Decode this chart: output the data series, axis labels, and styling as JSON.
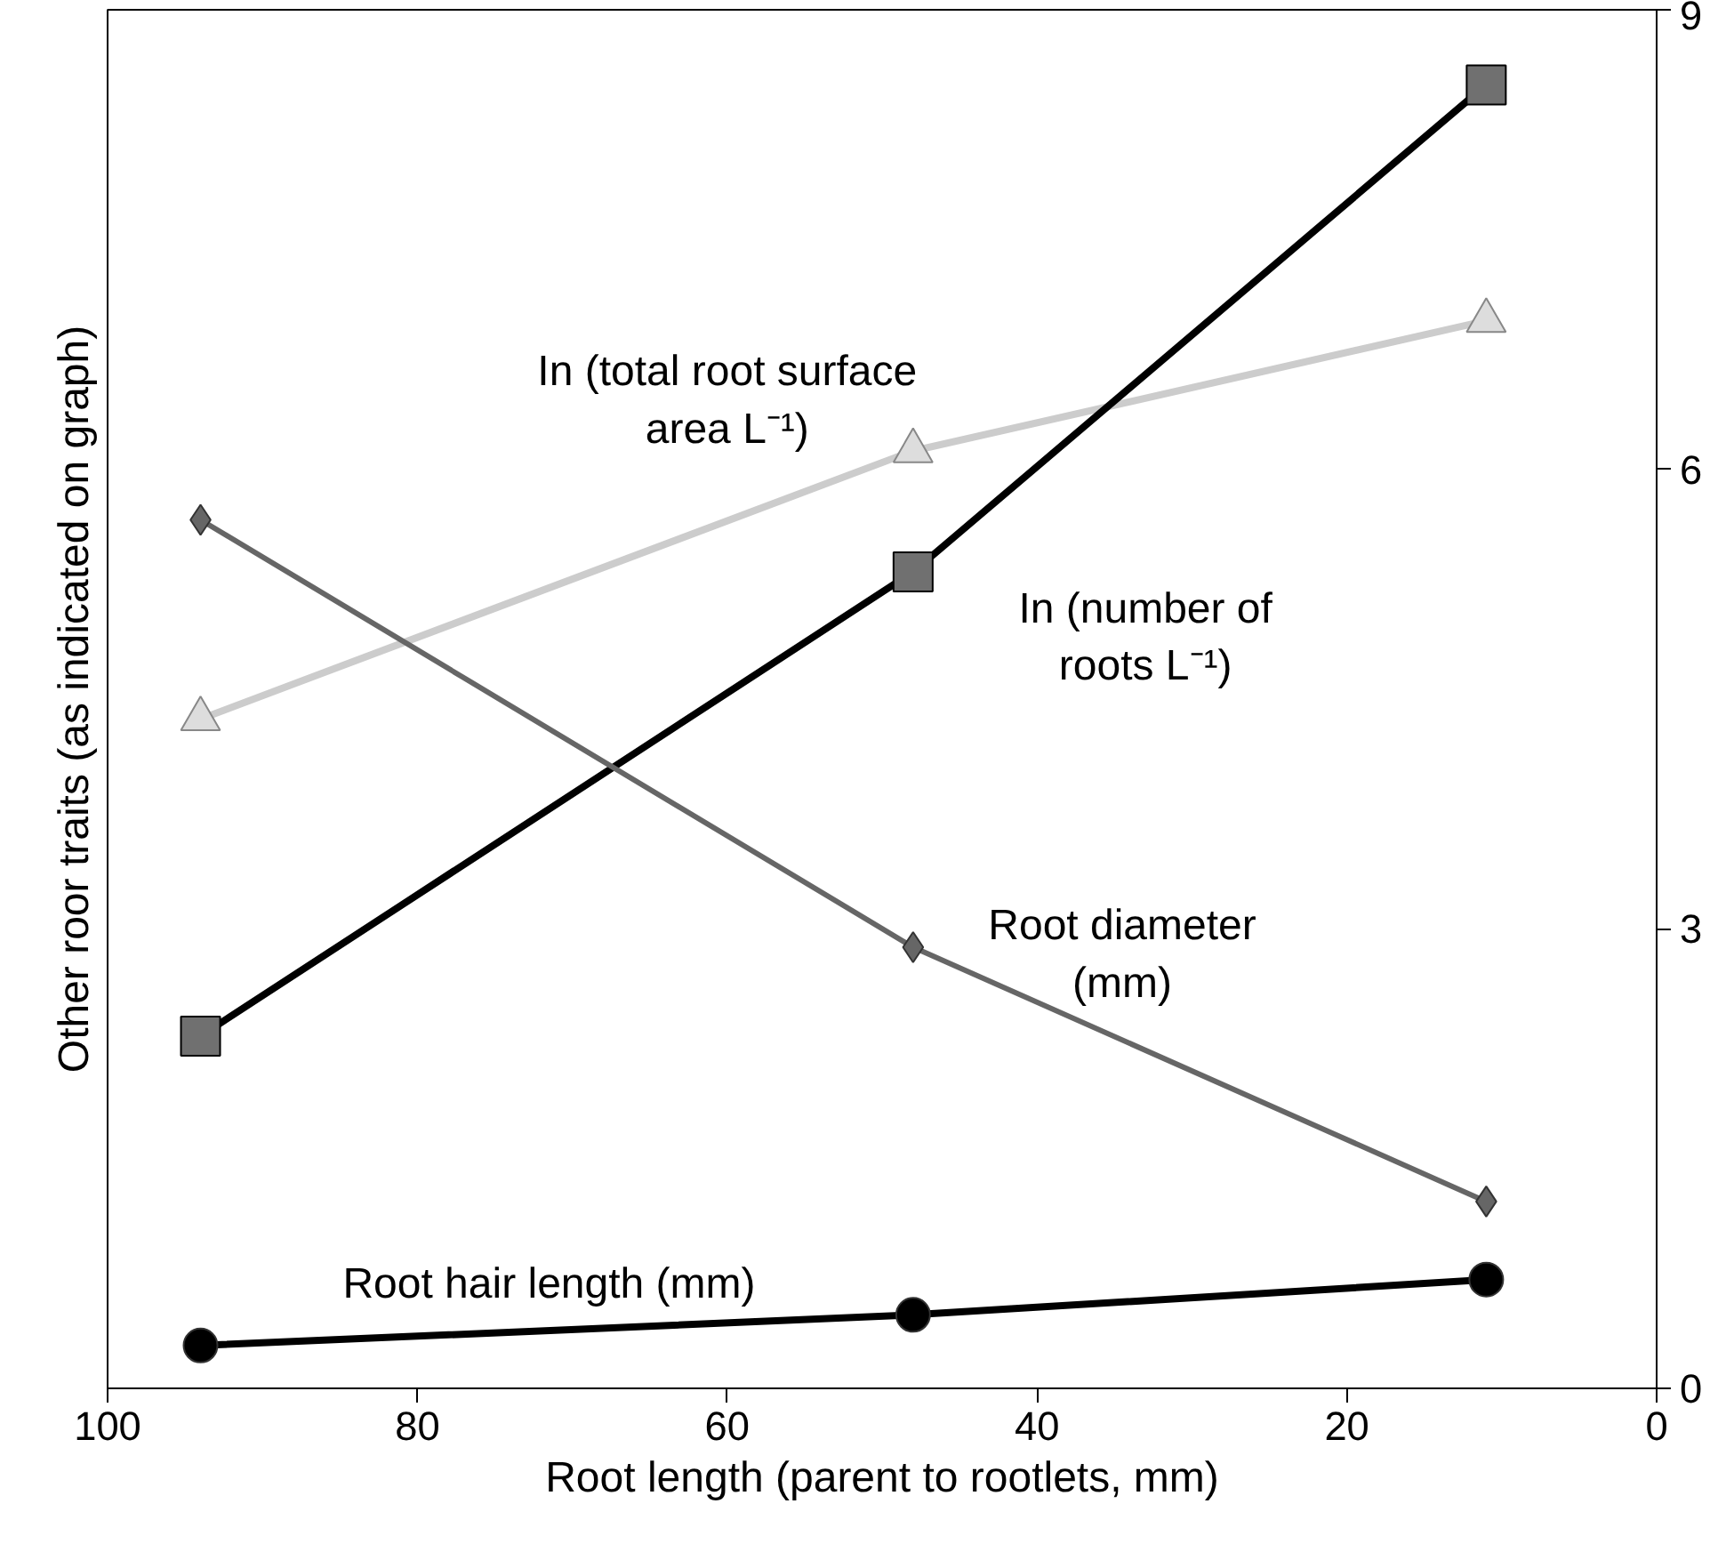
{
  "chart_data": {
    "type": "line",
    "xlabel": "Root length (parent to rootlets, mm)",
    "ylabel": "Other roor traits (as indicated on graph)",
    "x": [
      94,
      48,
      11
    ],
    "xlim": [
      100,
      0
    ],
    "xticks": [
      100,
      80,
      60,
      40,
      20,
      0
    ],
    "ylim": [
      0,
      9
    ],
    "yticks": [
      0,
      3,
      6,
      9
    ],
    "grid": false,
    "series": [
      {
        "name": "In (total root surface area L⁻¹)",
        "color": "#cccccc",
        "marker": "triangle",
        "values": [
          4.37,
          6.12,
          6.97
        ]
      },
      {
        "name": "In (number of roots L⁻¹)",
        "color": "#000000",
        "marker": "square",
        "values": [
          2.3,
          5.33,
          8.51
        ]
      },
      {
        "name": "Root diameter (mm)",
        "color": "#666666",
        "marker": "diamond",
        "values": [
          5.67,
          2.88,
          1.22
        ]
      },
      {
        "name": "Root hair length (mm)",
        "color": "#000000",
        "marker": "circle",
        "values": [
          0.28,
          0.48,
          0.71
        ]
      }
    ]
  }
}
